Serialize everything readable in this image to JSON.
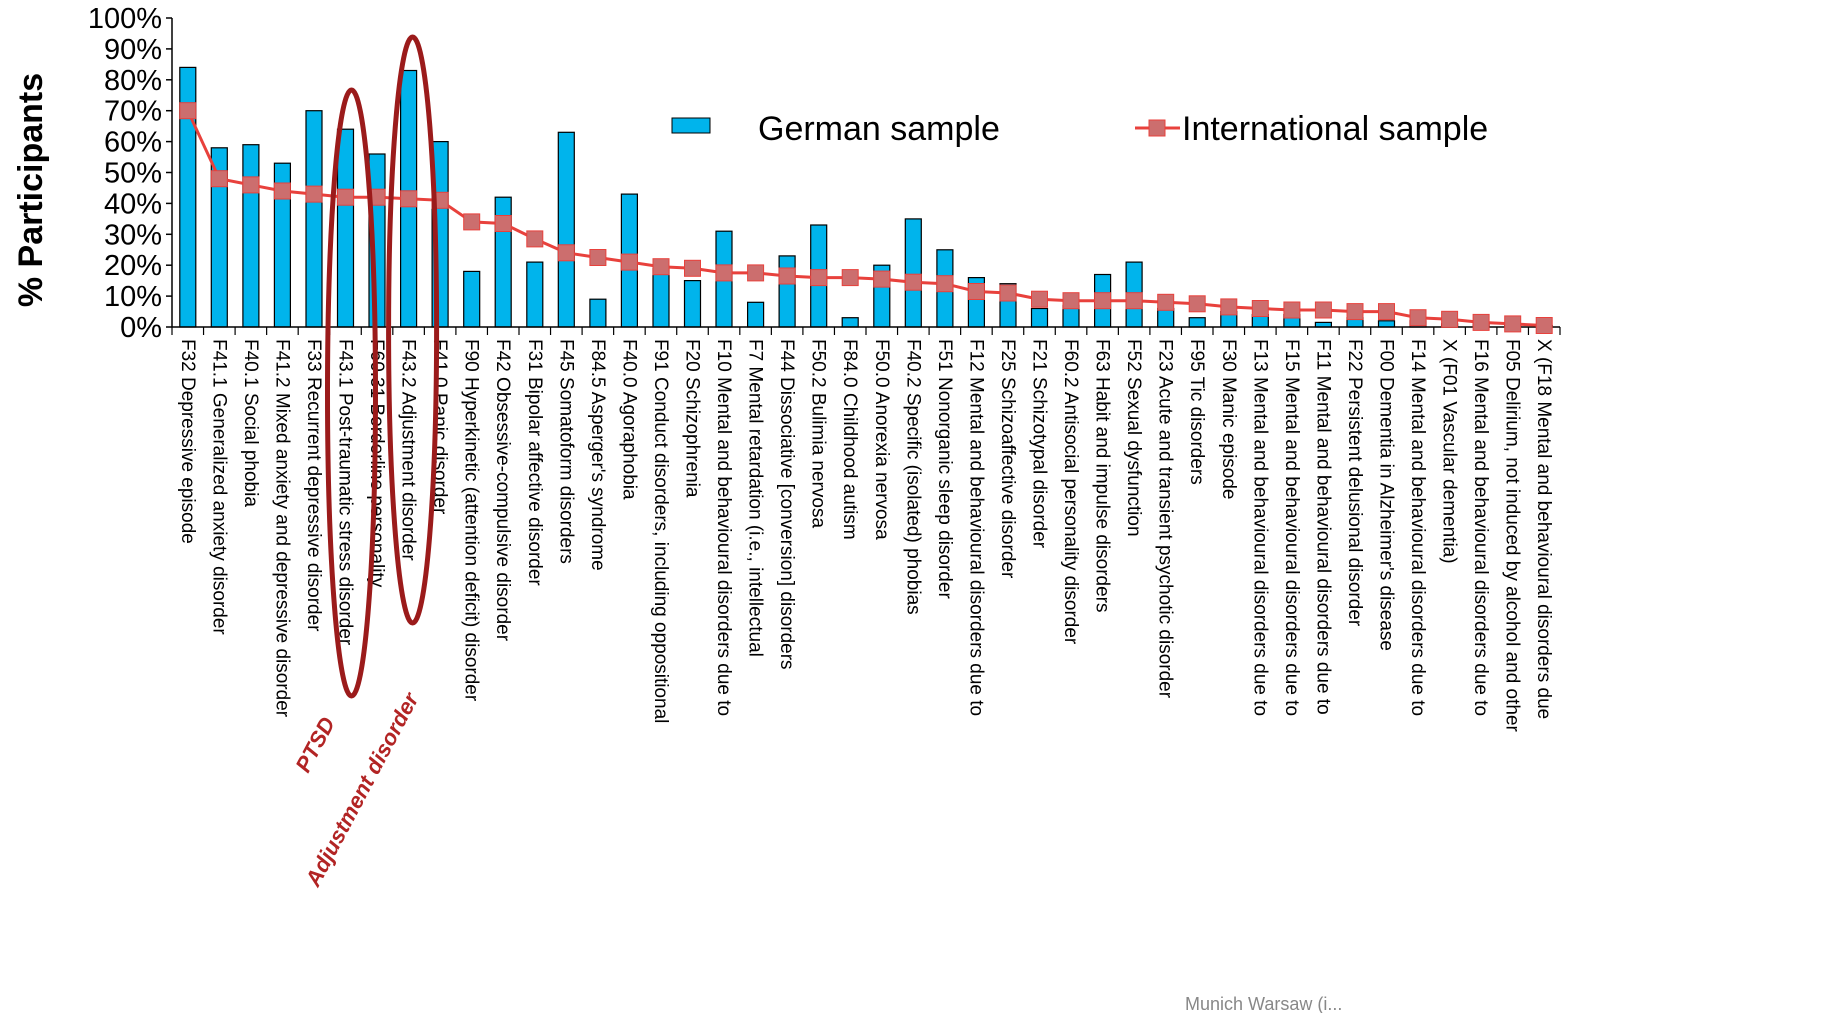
{
  "chart_data": {
    "type": "bar",
    "ylabel": "% Participants",
    "ylim": [
      0,
      100
    ],
    "yticks": [
      "0%",
      "10%",
      "20%",
      "30%",
      "40%",
      "50%",
      "60%",
      "70%",
      "80%",
      "90%",
      "100%"
    ],
    "categories": [
      "F32 Depressive episode",
      "F41.1 Generalized anxiety disorder",
      "F40.1 Social phobia",
      "F41.2 Mixed anxiety and depressive disorder",
      "F33 Recurrent depressive disorder",
      "F43.1 Post-traumatic stress disorder",
      "F60.31 Borderline personality",
      "F43.2 Adjustment disorder",
      "F41.0 Panic disorder",
      "F90 Hyperkinetic (attention deficit) disorder",
      "F42 Obsessive-compulsive disorder",
      "F31 Bipolar affective disorder",
      "F45 Somatoform disorders",
      "F84.5 Asperger's syndrome",
      "F40.0 Agoraphobia",
      "F91 Conduct disorders, including oppositional",
      "F20 Schizophrenia",
      "F10 Mental and behavioural disorders due to",
      "F7 Mental retardation (i.e., intellectual",
      "F44 Dissociative [conversion] disorders",
      "F50.2 Bulimia nervosa",
      "F84.0 Childhood autism",
      "F50.0 Anorexia nervosa",
      "F40.2 Specific (isolated) phobias",
      "F51 Nonorganic sleep disorder",
      "F12 Mental and behavioural disorders due to",
      "F25 Schizoaffective disorder",
      "F21 Schizotypal disorder",
      "F60.2 Antisocial personality disorder",
      "F63 Habit and impulse disorders",
      "F52 Sexual dysfunction",
      "F23 Acute and transient psychotic disorder",
      "F95 Tic disorders",
      "F30 Manic episode",
      "F13 Mental and behavioural disorders due to",
      "F15 Mental and behavioural disorders due to",
      "F11 Mental and behavioural disorders due to",
      "F22 Persistent delusional disorder",
      "F00 Dementia in Alzheimer's disease",
      "F14 Mental and behavioural disorders due to",
      "X (F01 Vascular dementia)",
      "F16 Mental and behavioural disorders due to",
      "F05 Delirium, not induced by alcohol and other",
      "X (F18 Mental and behavioural disorders due"
    ],
    "series": [
      {
        "name": "German   sample",
        "type": "bar",
        "color": "#00b4ec",
        "values": [
          84,
          58,
          59,
          53,
          70,
          64,
          56,
          83,
          60,
          18,
          42,
          21,
          63,
          9,
          43,
          19,
          15,
          31,
          8,
          23,
          33,
          3,
          20,
          35,
          25,
          16,
          14,
          6,
          7,
          17,
          21,
          6,
          3,
          5,
          4,
          4,
          1.5,
          3,
          2,
          2,
          1,
          1,
          1,
          0.5
        ]
      },
      {
        "name": "International sample",
        "type": "line",
        "color": "#e8413c",
        "marker_color": "#cc6e6e",
        "values": [
          70,
          48,
          46,
          44,
          43,
          42,
          42,
          41.5,
          41,
          34,
          33.5,
          28.5,
          24,
          22.5,
          21,
          19.5,
          19,
          17.5,
          17.5,
          16.5,
          16,
          16,
          15.5,
          14.5,
          14,
          11.5,
          11,
          9,
          8.5,
          8.5,
          8.5,
          8,
          7.5,
          6.5,
          6,
          5.5,
          5.5,
          5,
          5,
          3,
          2.5,
          1.5,
          1,
          0.5
        ]
      }
    ],
    "legend": {
      "position": "top-right"
    },
    "annotations": [
      {
        "text": "PTSD",
        "category": "F43.1 Post-traumatic stress disorder"
      },
      {
        "text": "Adjustment disorder",
        "category": "F43.2 Adjustment disorder"
      }
    ],
    "highlight_color": "#9b1b1b",
    "source_note": "Munich Warsaw (i..."
  }
}
